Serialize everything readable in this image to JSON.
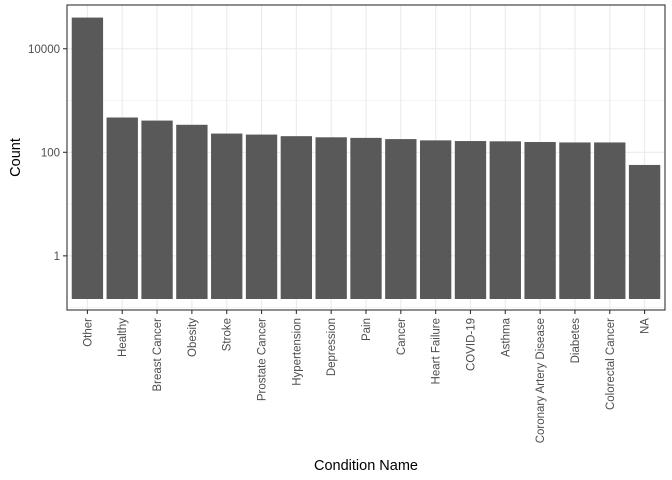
{
  "chart_data": {
    "type": "bar",
    "xlabel": "Condition Name",
    "ylabel": "Count",
    "y_scale": "log10",
    "ylim": [
      0.09,
      70000
    ],
    "y_ticks": [
      1,
      100,
      10000
    ],
    "y_tick_labels": [
      "1",
      "100",
      "10000"
    ],
    "grid": true,
    "categories": [
      "Other",
      "Healthy",
      "Breast Cancer",
      "Obesity",
      "Stroke",
      "Prostate Cancer",
      "Hypertension",
      "Depression",
      "Pain",
      "Cancer",
      "Heart Failure",
      "COVID-19",
      "Asthma",
      "Coronary Artery Disease",
      "Diabetes",
      "Colorectal Cancer",
      "NA"
    ],
    "values": [
      40000,
      470,
      410,
      340,
      230,
      220,
      205,
      195,
      190,
      180,
      170,
      165,
      163,
      158,
      155,
      155,
      57
    ],
    "bar_color": "#595959",
    "grid_color": "#ebebeb",
    "panel_border_color": "#333333"
  }
}
